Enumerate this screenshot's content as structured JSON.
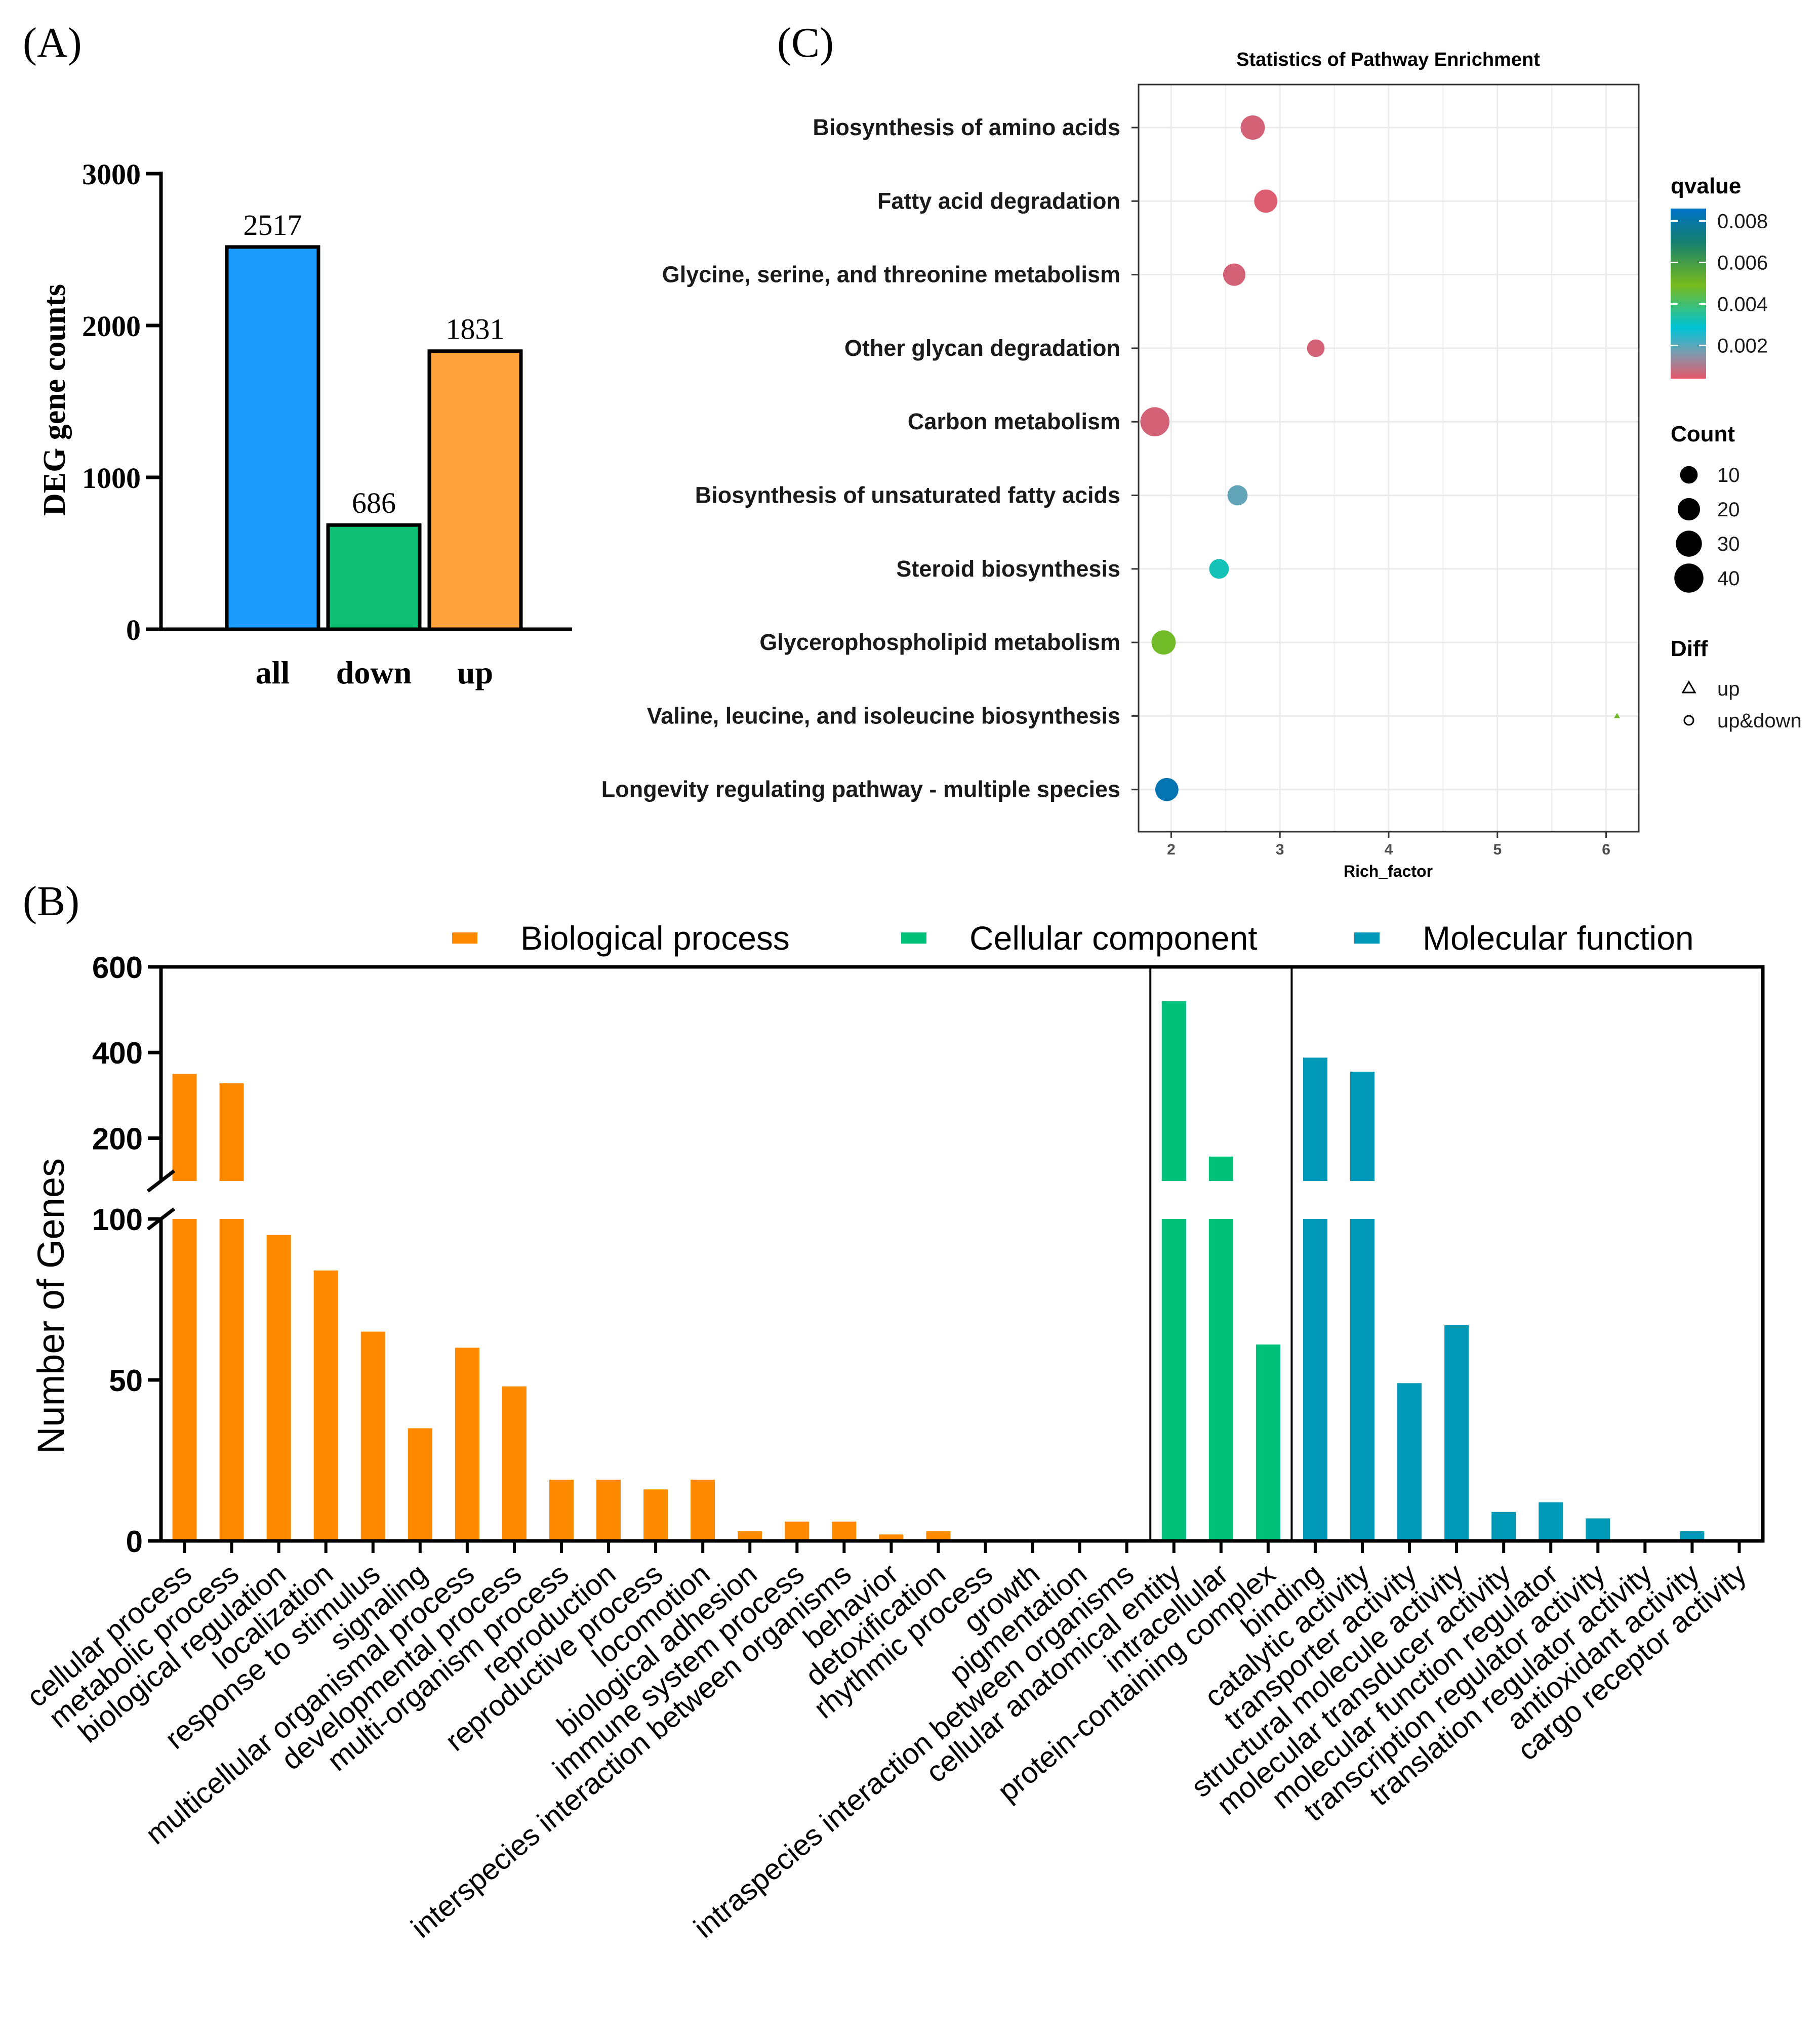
{
  "panels": {
    "a": "(A)",
    "b": "(B)",
    "c": "(C)"
  },
  "colors": {
    "all": "#1b9cfc",
    "down": "#0fbf74",
    "up": "#ffa23a",
    "biological": "#ff8a00",
    "cellular": "#00c07a",
    "molecular": "#0099b8"
  },
  "chart_data": [
    {
      "id": "A",
      "type": "bar",
      "title": "",
      "ylabel": "DEG gene counts",
      "xlabel": "",
      "categories": [
        "all",
        "down",
        "up"
      ],
      "values": [
        2517,
        686,
        1831
      ],
      "value_labels": [
        "2517",
        "686",
        "1831"
      ],
      "ylim": [
        0,
        3000
      ],
      "yticks": [
        0,
        1000,
        2000,
        3000
      ],
      "ytick_labels": [
        "0",
        "1000",
        "2000",
        "3000"
      ],
      "bar_colors": [
        "#1b9cfc",
        "#0fbf74",
        "#ffa23a"
      ]
    },
    {
      "id": "C",
      "type": "scatter",
      "title": "Statistics of Pathway Enrichment",
      "xlabel": "Rich_factor",
      "ylabel": "",
      "xlim": [
        1.7,
        6.3
      ],
      "xticks": [
        2,
        3,
        4,
        5,
        6
      ],
      "xtick_labels": [
        "2",
        "3",
        "4",
        "5",
        "6"
      ],
      "pathways": [
        {
          "name": "Biosynthesis of amino acids",
          "rich_factor": 2.75,
          "qvalue": 0.0006,
          "count": 25,
          "diff": "up&down"
        },
        {
          "name": "Fatty acid degradation",
          "rich_factor": 2.87,
          "qvalue": 0.0005,
          "count": 22,
          "diff": "up&down"
        },
        {
          "name": "Glycine, serine, and threonine metabolism",
          "rich_factor": 2.58,
          "qvalue": 0.0006,
          "count": 20,
          "diff": "up&down"
        },
        {
          "name": "Other glycan degradation",
          "rich_factor": 3.33,
          "qvalue": 0.0006,
          "count": 10,
          "diff": "up&down"
        },
        {
          "name": "Carbon metabolism",
          "rich_factor": 1.85,
          "qvalue": 0.0006,
          "count": 40,
          "diff": "up&down"
        },
        {
          "name": "Biosynthesis of unsaturated fatty acids",
          "rich_factor": 2.61,
          "qvalue": 0.0019,
          "count": 15,
          "diff": "up&down"
        },
        {
          "name": "Steroid biosynthesis",
          "rich_factor": 2.44,
          "qvalue": 0.0032,
          "count": 14,
          "diff": "up&down"
        },
        {
          "name": "Glycerophospholipid metabolism",
          "rich_factor": 1.93,
          "qvalue": 0.0048,
          "count": 25,
          "diff": "up&down"
        },
        {
          "name": "Valine, leucine, and isoleucine biosynthesis",
          "rich_factor": 6.1,
          "qvalue": 0.0048,
          "count": 2,
          "diff": "up"
        },
        {
          "name": "Longevity regulating pathway - multiple species",
          "rich_factor": 1.96,
          "qvalue": 0.0082,
          "count": 22,
          "diff": "up&down"
        }
      ],
      "legend": {
        "qvalue_title": "qvalue",
        "qvalue_ticks": [
          "0.008",
          "0.006",
          "0.004",
          "0.002"
        ],
        "qvalue_tick_values": [
          0.008,
          0.006,
          0.004,
          0.002
        ],
        "qvalue_range": [
          0.0004,
          0.0086
        ],
        "count_title": "Count",
        "count_values": [
          10,
          20,
          30,
          40
        ],
        "count_labels": [
          "10",
          "20",
          "30",
          "40"
        ],
        "diff_title": "Diff",
        "diff_labels": [
          "up",
          "up&down"
        ]
      }
    },
    {
      "id": "B",
      "type": "bar",
      "title": "",
      "ylabel": "Number of Genes",
      "xlabel": "",
      "legend": [
        "Biological process",
        "Cellular component",
        "Molecular function"
      ],
      "yticks_lower": [
        0,
        50,
        100
      ],
      "ytick_lower_labels": [
        "0",
        "50",
        "100"
      ],
      "yticks_upper": [
        200,
        400,
        600
      ],
      "ytick_upper_labels": [
        "200",
        "400",
        "600"
      ],
      "axis_break": [
        100,
        100
      ],
      "categories": [
        {
          "label": "cellular process",
          "value": 350,
          "group": "Biological process"
        },
        {
          "label": "metabolic process",
          "value": 328,
          "group": "Biological process"
        },
        {
          "label": "biological regulation",
          "value": 95,
          "group": "Biological process"
        },
        {
          "label": "localization",
          "value": 84,
          "group": "Biological process"
        },
        {
          "label": "response to stimulus",
          "value": 65,
          "group": "Biological process"
        },
        {
          "label": "signaling",
          "value": 35,
          "group": "Biological process"
        },
        {
          "label": "multicellular organismal process",
          "value": 60,
          "group": "Biological process"
        },
        {
          "label": "developmental process",
          "value": 48,
          "group": "Biological process"
        },
        {
          "label": "multi-organism process",
          "value": 19,
          "group": "Biological process"
        },
        {
          "label": "reproduction",
          "value": 19,
          "group": "Biological process"
        },
        {
          "label": "reproductive process",
          "value": 16,
          "group": "Biological process"
        },
        {
          "label": "locomotion",
          "value": 19,
          "group": "Biological process"
        },
        {
          "label": "biological adhesion",
          "value": 3,
          "group": "Biological process"
        },
        {
          "label": "immune system process",
          "value": 6,
          "group": "Biological process"
        },
        {
          "label": "interspecies interaction between organisms",
          "value": 6,
          "group": "Biological process"
        },
        {
          "label": "behavior",
          "value": 2,
          "group": "Biological process"
        },
        {
          "label": "detoxification",
          "value": 3,
          "group": "Biological process"
        },
        {
          "label": "rhythmic process",
          "value": 0,
          "group": "Biological process"
        },
        {
          "label": "growth",
          "value": 0,
          "group": "Biological process"
        },
        {
          "label": "pigmentation",
          "value": 0,
          "group": "Biological process"
        },
        {
          "label": "intraspecies interaction between organisms",
          "value": 0,
          "group": "Biological process"
        },
        {
          "label": "cellular anatomical entity",
          "value": 520,
          "group": "Cellular component"
        },
        {
          "label": "intracellular",
          "value": 157,
          "group": "Cellular component"
        },
        {
          "label": "protein-containing complex",
          "value": 61,
          "group": "Cellular component"
        },
        {
          "label": "binding",
          "value": 388,
          "group": "Molecular function"
        },
        {
          "label": "catalytic activity",
          "value": 355,
          "group": "Molecular function"
        },
        {
          "label": "transporter activity",
          "value": 49,
          "group": "Molecular function"
        },
        {
          "label": "structural molecule activity",
          "value": 67,
          "group": "Molecular function"
        },
        {
          "label": "molecular transducer activity",
          "value": 9,
          "group": "Molecular function"
        },
        {
          "label": "molecular function regulator",
          "value": 12,
          "group": "Molecular function"
        },
        {
          "label": "transcription regulator activity",
          "value": 7,
          "group": "Molecular function"
        },
        {
          "label": "translation regulator activity",
          "value": 0,
          "group": "Molecular function"
        },
        {
          "label": "antioxidant activity",
          "value": 3,
          "group": "Molecular function"
        },
        {
          "label": "cargo receptor activity",
          "value": 0,
          "group": "Molecular function"
        }
      ]
    }
  ]
}
